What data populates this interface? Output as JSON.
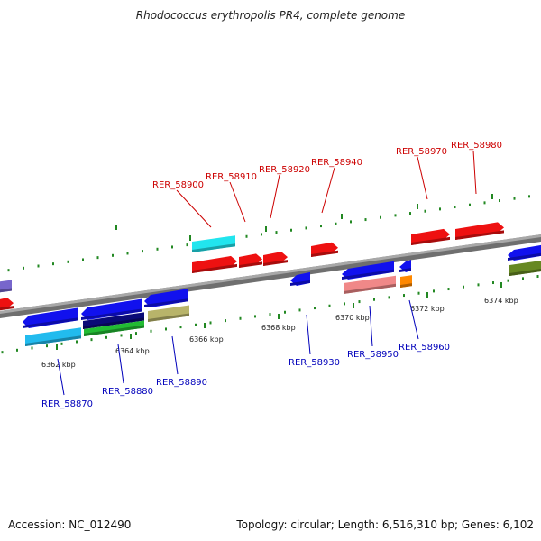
{
  "title": "Rhodococcus erythropolis PR4, complete genome",
  "footer": {
    "accession": "Accession: NC_012490",
    "summary": "Topology: circular; Length: 6,516,310 bp; Genes: 6,102"
  },
  "colors": {
    "backbone": "#888888",
    "tick": "#228822",
    "forward_label": "#cc0000",
    "reverse_label": "#0000bb"
  },
  "scale_labels": [
    "6362 kbp",
    "6364 kbp",
    "6366 kbp",
    "6368 kbp",
    "6370 kbp",
    "6372 kbp",
    "6374 kbp"
  ],
  "gene_labels": [
    {
      "id": "RER_58870",
      "strand": "reverse"
    },
    {
      "id": "RER_58880",
      "strand": "reverse"
    },
    {
      "id": "RER_58890",
      "strand": "reverse"
    },
    {
      "id": "RER_58900",
      "strand": "forward"
    },
    {
      "id": "RER_58910",
      "strand": "forward"
    },
    {
      "id": "RER_58920",
      "strand": "forward"
    },
    {
      "id": "RER_58930",
      "strand": "reverse"
    },
    {
      "id": "RER_58940",
      "strand": "forward"
    },
    {
      "id": "RER_58950",
      "strand": "reverse"
    },
    {
      "id": "RER_58960",
      "strand": "reverse"
    },
    {
      "id": "RER_58970",
      "strand": "forward"
    },
    {
      "id": "RER_58980",
      "strand": "forward"
    }
  ]
}
